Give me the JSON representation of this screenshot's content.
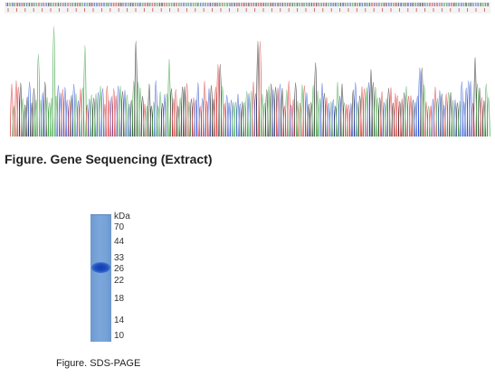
{
  "sequencing": {
    "caption": "Figure. Gene Sequencing (Extract)",
    "colors": {
      "A": "#3aa040",
      "C": "#2a4fd0",
      "G": "#222222",
      "T": "#d83030"
    }
  },
  "sds_page": {
    "unit": "kDa",
    "markers": [
      "70",
      "44",
      "33",
      "26",
      "22",
      "18",
      "14",
      "10"
    ],
    "caption": "Figure. SDS-PAGE",
    "lane_color": "#77a2d8",
    "band_color": "#1a47bb"
  }
}
